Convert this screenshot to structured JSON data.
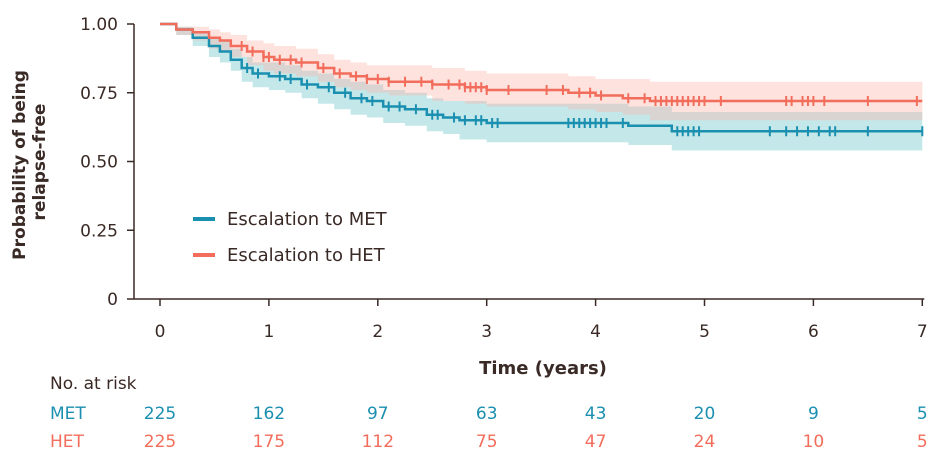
{
  "colors": {
    "met": "#1a8fb0",
    "het": "#f26d5b",
    "axis": "#3a2a26",
    "met_band": "#6cc6c8",
    "het_band": "#f9b6ad"
  },
  "chart_data": {
    "type": "line",
    "title": "",
    "xlabel": "Time (years)",
    "ylabel": "Probability of being relapse-free",
    "xlim": [
      0,
      7
    ],
    "ylim": [
      0,
      1
    ],
    "x_ticks": [
      "0",
      "1",
      "2",
      "3",
      "4",
      "5",
      "6",
      "7"
    ],
    "y_ticks": [
      "0",
      "0.25",
      "0.50",
      "0.75",
      "1.00"
    ],
    "grid": false,
    "legend_position": "lower-left",
    "series": [
      {
        "name": "Escalation to MET",
        "color": "#1a8fb0",
        "x": [
          0,
          0.15,
          0.3,
          0.45,
          0.55,
          0.65,
          0.75,
          0.85,
          1.0,
          1.15,
          1.3,
          1.45,
          1.6,
          1.75,
          1.9,
          2.05,
          2.25,
          2.45,
          2.6,
          2.75,
          3.0,
          3.5,
          4.0,
          4.3,
          4.7,
          5.0,
          6.0,
          7.0
        ],
        "y": [
          1.0,
          0.98,
          0.95,
          0.92,
          0.9,
          0.87,
          0.84,
          0.82,
          0.81,
          0.8,
          0.78,
          0.77,
          0.75,
          0.73,
          0.72,
          0.7,
          0.69,
          0.67,
          0.66,
          0.65,
          0.64,
          0.64,
          0.64,
          0.63,
          0.61,
          0.61,
          0.61,
          0.61
        ],
        "ci_lower": [
          1.0,
          0.96,
          0.92,
          0.88,
          0.86,
          0.83,
          0.79,
          0.77,
          0.76,
          0.75,
          0.73,
          0.71,
          0.69,
          0.67,
          0.66,
          0.64,
          0.63,
          0.61,
          0.6,
          0.58,
          0.57,
          0.57,
          0.57,
          0.56,
          0.54,
          0.54,
          0.54,
          0.54
        ],
        "ci_upper": [
          1.0,
          0.99,
          0.97,
          0.95,
          0.94,
          0.91,
          0.88,
          0.86,
          0.86,
          0.85,
          0.83,
          0.82,
          0.8,
          0.79,
          0.78,
          0.76,
          0.75,
          0.73,
          0.72,
          0.72,
          0.71,
          0.71,
          0.71,
          0.7,
          0.68,
          0.68,
          0.68,
          0.68
        ],
        "censor_x": [
          0.8,
          0.9,
          1.1,
          1.2,
          1.35,
          1.55,
          1.7,
          1.85,
          1.95,
          2.1,
          2.2,
          2.35,
          2.5,
          2.55,
          2.7,
          2.8,
          2.9,
          2.95,
          3.05,
          3.1,
          3.75,
          3.8,
          3.85,
          3.9,
          3.95,
          4.0,
          4.05,
          4.1,
          4.25,
          4.75,
          4.8,
          4.85,
          4.9,
          4.95,
          5.6,
          5.75,
          5.85,
          5.95,
          6.05,
          6.15,
          6.2,
          6.5,
          7.0
        ]
      },
      {
        "name": "Escalation to HET",
        "color": "#f26d5b",
        "x": [
          0,
          0.15,
          0.3,
          0.45,
          0.55,
          0.65,
          0.8,
          0.95,
          1.05,
          1.25,
          1.45,
          1.6,
          1.75,
          1.9,
          2.1,
          2.5,
          2.8,
          3.0,
          3.5,
          3.75,
          4.0,
          4.25,
          4.5,
          5.0,
          6.0,
          7.0
        ],
        "y": [
          1.0,
          0.98,
          0.97,
          0.95,
          0.94,
          0.92,
          0.9,
          0.88,
          0.87,
          0.86,
          0.84,
          0.82,
          0.81,
          0.8,
          0.79,
          0.78,
          0.77,
          0.76,
          0.76,
          0.75,
          0.74,
          0.73,
          0.72,
          0.72,
          0.72,
          0.72
        ],
        "ci_lower": [
          1.0,
          0.96,
          0.94,
          0.91,
          0.9,
          0.88,
          0.85,
          0.83,
          0.82,
          0.81,
          0.79,
          0.77,
          0.76,
          0.75,
          0.74,
          0.72,
          0.71,
          0.7,
          0.7,
          0.69,
          0.68,
          0.67,
          0.65,
          0.65,
          0.65,
          0.65
        ],
        "ci_upper": [
          1.0,
          0.99,
          0.99,
          0.98,
          0.97,
          0.96,
          0.94,
          0.93,
          0.92,
          0.91,
          0.89,
          0.87,
          0.86,
          0.85,
          0.85,
          0.84,
          0.83,
          0.82,
          0.82,
          0.81,
          0.8,
          0.8,
          0.79,
          0.79,
          0.79,
          0.79
        ],
        "censor_x": [
          0.75,
          0.85,
          0.95,
          1.0,
          1.1,
          1.2,
          1.3,
          1.5,
          1.65,
          1.8,
          1.9,
          2.0,
          2.1,
          2.25,
          2.4,
          2.5,
          2.65,
          2.75,
          2.8,
          2.85,
          2.9,
          2.95,
          3.0,
          3.2,
          3.55,
          3.7,
          3.85,
          3.95,
          4.05,
          4.3,
          4.45,
          4.55,
          4.6,
          4.65,
          4.7,
          4.75,
          4.8,
          4.85,
          4.9,
          4.95,
          5.0,
          5.15,
          5.75,
          5.8,
          5.9,
          5.95,
          6.0,
          6.1,
          6.5,
          6.95
        ]
      }
    ],
    "risk_table": {
      "label": "No. at risk",
      "times": [
        0,
        1,
        2,
        3,
        4,
        5,
        6,
        7
      ],
      "rows": [
        {
          "name": "MET",
          "values": [
            "225",
            "162",
            "97",
            "63",
            "43",
            "20",
            "9",
            "5"
          ]
        },
        {
          "name": "HET",
          "values": [
            "225",
            "175",
            "112",
            "75",
            "47",
            "24",
            "10",
            "5"
          ]
        }
      ]
    }
  }
}
